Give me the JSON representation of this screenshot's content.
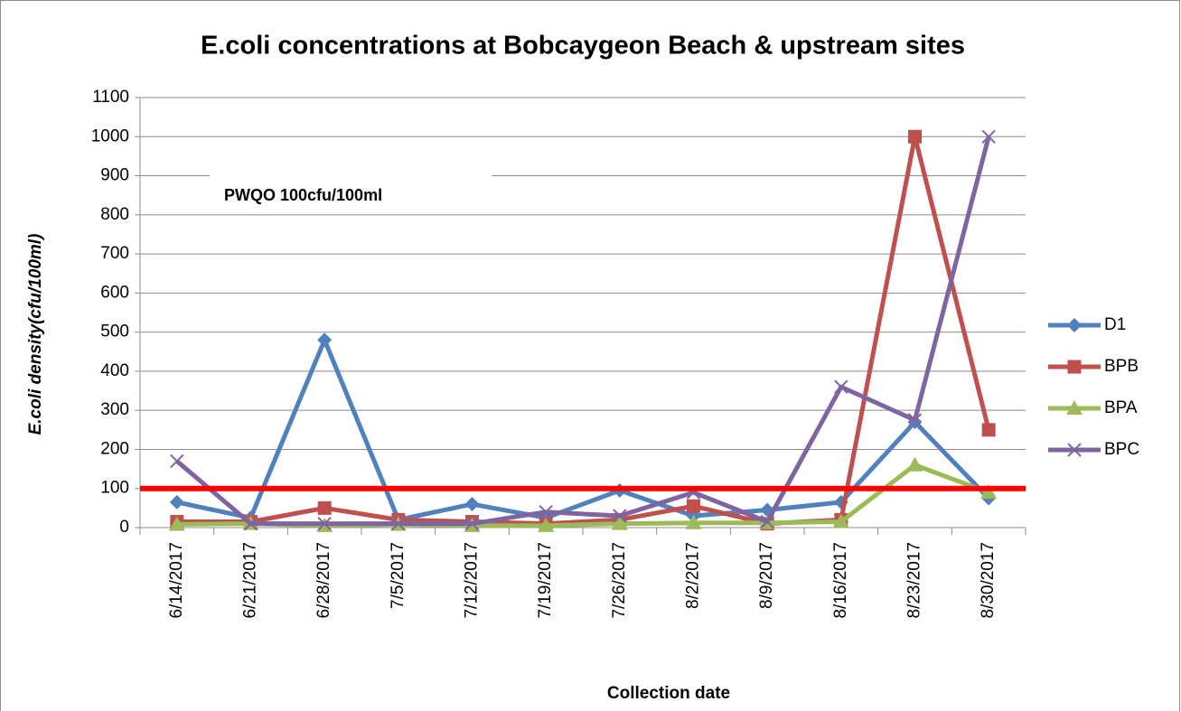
{
  "chart_data": {
    "type": "line",
    "title": "E.coli concentrations at Bobcaygeon Beach & upstream sites",
    "x_label": "Collection date",
    "y_label": "E.coli  density(cfu/100ml)",
    "annotation": "PWQO 100cfu/100ml",
    "threshold": {
      "value": 100,
      "color": "#ff0000"
    },
    "categories": [
      "6/14/2017",
      "6/21/2017",
      "6/28/2017",
      "7/5/2017",
      "7/12/2017",
      "7/19/2017",
      "7/26/2017",
      "8/2/2017",
      "8/9/2017",
      "8/16/2017",
      "8/23/2017",
      "8/30/2017"
    ],
    "series": [
      {
        "name": "D1",
        "color": "#4f81bd",
        "marker": "diamond",
        "values": [
          65,
          25,
          480,
          20,
          60,
          25,
          95,
          30,
          45,
          65,
          270,
          75
        ]
      },
      {
        "name": "BPB",
        "color": "#c0504d",
        "marker": "square",
        "values": [
          15,
          15,
          50,
          20,
          15,
          10,
          20,
          55,
          10,
          20,
          1000,
          250
        ]
      },
      {
        "name": "BPA",
        "color": "#9bbb59",
        "marker": "triangle",
        "values": [
          8,
          10,
          5,
          8,
          5,
          5,
          10,
          12,
          12,
          15,
          160,
          90
        ]
      },
      {
        "name": "BPC",
        "color": "#8064a2",
        "marker": "x",
        "values": [
          170,
          10,
          10,
          10,
          10,
          40,
          30,
          90,
          15,
          360,
          275,
          1000
        ]
      }
    ],
    "ylim": [
      0,
      1100
    ],
    "yticks": [
      0,
      100,
      200,
      300,
      400,
      500,
      600,
      700,
      800,
      900,
      1000,
      1100
    ],
    "grid": true,
    "legend": "right"
  }
}
